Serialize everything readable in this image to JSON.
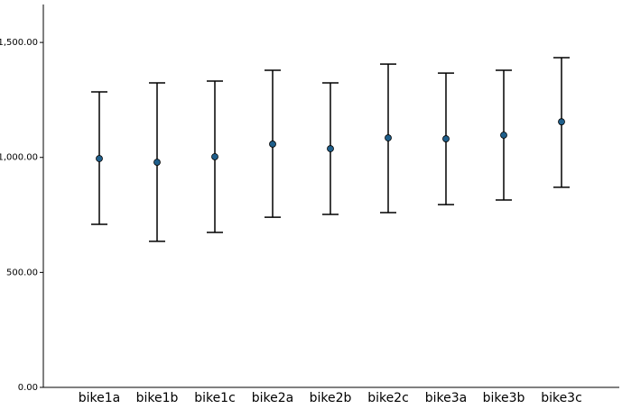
{
  "chart_data": {
    "type": "errorbar",
    "categories": [
      "bike1a",
      "bike1b",
      "bike1c",
      "bike2a",
      "bike2b",
      "bike2c",
      "bike3a",
      "bike3b",
      "bike3c"
    ],
    "values": [
      995,
      979,
      1003,
      1058,
      1038,
      1085,
      1081,
      1097,
      1155
    ],
    "low": [
      709,
      635,
      674,
      740,
      752,
      760,
      795,
      815,
      870
    ],
    "high": [
      1285,
      1324,
      1332,
      1379,
      1324,
      1406,
      1367,
      1379,
      1434
    ],
    "color": "#1f5f8b",
    "ylim": [
      0,
      1665
    ],
    "yticks": [
      {
        "value": 0,
        "label": "0.00"
      },
      {
        "value": 500,
        "label": "500.00"
      },
      {
        "value": 1000,
        "label": "1,000.00"
      },
      {
        "value": 1500,
        "label": "1,500.00"
      }
    ],
    "grid": false
  }
}
